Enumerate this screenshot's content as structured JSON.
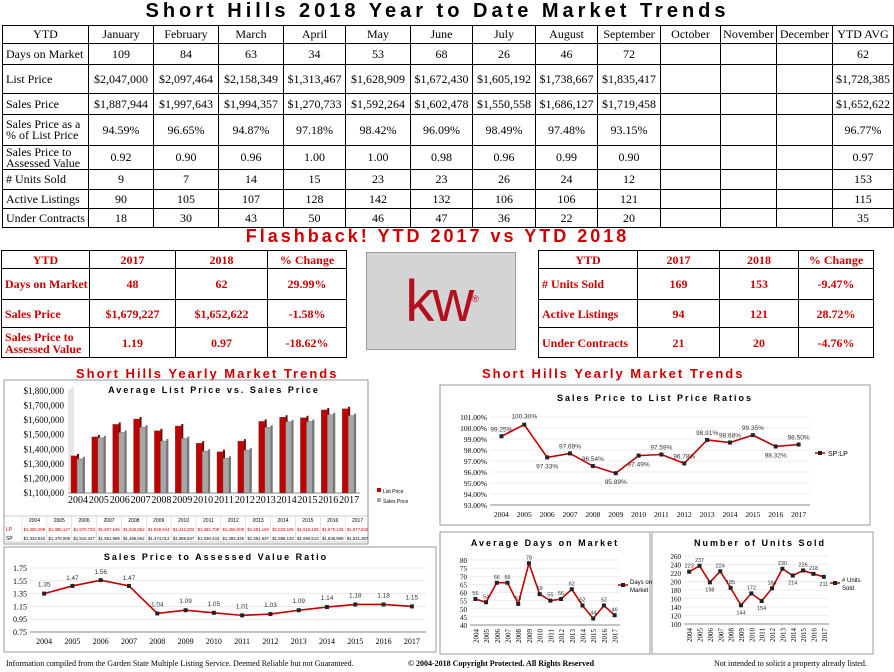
{
  "title": "Short Hills 2018 Year to Date Market Trends",
  "ytd_table": {
    "header": [
      "YTD",
      "January",
      "February",
      "March",
      "April",
      "May",
      "June",
      "July",
      "August",
      "September",
      "October",
      "November",
      "December",
      "YTD AVG"
    ],
    "rows": [
      {
        "label": "Days on Market",
        "values": [
          "109",
          "84",
          "63",
          "34",
          "53",
          "68",
          "26",
          "46",
          "72",
          "",
          "",
          "",
          "62"
        ]
      },
      {
        "label": "List Price",
        "values": [
          "$2,047,000",
          "$2,097,464",
          "$2,158,349",
          "$1,313,467",
          "$1,628,909",
          "$1,672,430",
          "$1,605,192",
          "$1,738,667",
          "$1,835,417",
          "",
          "",
          "",
          "$1,728,385"
        ]
      },
      {
        "label": "Sales Price",
        "values": [
          "$1,887,944",
          "$1,997,643",
          "$1,994,357",
          "$1,270,733",
          "$1,592,264",
          "$1,602,478",
          "$1,550,558",
          "$1,686,127",
          "$1,719,458",
          "",
          "",
          "",
          "$1,652,622"
        ]
      },
      {
        "label": "Sales Price as a % of List Price",
        "values": [
          "94.59%",
          "96.65%",
          "94.87%",
          "97.18%",
          "98.42%",
          "96.09%",
          "98.49%",
          "97.48%",
          "93.15%",
          "",
          "",
          "",
          "96.77%"
        ]
      },
      {
        "label": "Sales Price to Assessed Value",
        "values": [
          "0.92",
          "0.90",
          "0.96",
          "1.00",
          "1.00",
          "0.98",
          "0.96",
          "0.99",
          "0.90",
          "",
          "",
          "",
          "0.97"
        ]
      },
      {
        "label": "# Units Sold",
        "values": [
          "9",
          "7",
          "14",
          "15",
          "23",
          "23",
          "26",
          "24",
          "12",
          "",
          "",
          "",
          "153"
        ]
      },
      {
        "label": "Active Listings",
        "values": [
          "90",
          "105",
          "107",
          "128",
          "142",
          "132",
          "106",
          "106",
          "121",
          "",
          "",
          "",
          "115"
        ]
      },
      {
        "label": "Under Contracts",
        "values": [
          "18",
          "30",
          "43",
          "50",
          "46",
          "47",
          "36",
          "22",
          "20",
          "",
          "",
          "",
          "35"
        ]
      }
    ]
  },
  "flashback_title": "Flashback!  YTD 2017 vs YTD 2018",
  "compare_left": {
    "header": [
      "YTD",
      "2017",
      "2018",
      "% Change"
    ],
    "rows": [
      {
        "label": "Days on Market",
        "values": [
          "48",
          "62",
          "29.99%"
        ]
      },
      {
        "label": "Sales Price",
        "values": [
          "$1,679,227",
          "$1,652,622",
          "-1.58%"
        ]
      },
      {
        "label": "Sales Price to Assessed Value",
        "values": [
          "1.19",
          "0.97",
          "-18.62%"
        ]
      }
    ]
  },
  "compare_right": {
    "header": [
      "YTD",
      "2017",
      "2018",
      "% Change"
    ],
    "rows": [
      {
        "label": "# Units Sold",
        "values": [
          "169",
          "153",
          "-9.47%"
        ]
      },
      {
        "label": "Active Listings",
        "values": [
          "94",
          "121",
          "28.72%"
        ]
      },
      {
        "label": "Under Contracts",
        "values": [
          "21",
          "20",
          "-4.76%"
        ]
      }
    ]
  },
  "logo_text": "kw",
  "logo_mark": "®",
  "section_left": "Short Hills Yearly Market Trends",
  "section_right": "Short Hills Yearly Market Trends",
  "footer": {
    "left": "Information compiled from the Garden State Multiple Listing Service.  Deemed Reliable but not Guaranteed.",
    "center": "© 2004-2018 Copyright Protected.  All Rights Reserved",
    "right": "Not intended to solicit a property already listed."
  },
  "colors": {
    "red": "#cc0000",
    "bar_list": "#c00000",
    "bar_sales": "#a6a6a6",
    "line": "#c00000"
  },
  "chart_data": [
    {
      "type": "bar",
      "title": "Average List Price vs. Sales Price",
      "categories": [
        "2004",
        "2005",
        "2006",
        "2007",
        "2008",
        "2009",
        "2010",
        "2011",
        "2012",
        "2013",
        "2014",
        "2015",
        "2016",
        "2017"
      ],
      "ylim": [
        1100000,
        1800000
      ],
      "yticks": [
        "$1,100,000",
        "$1,200,000",
        "$1,300,000",
        "$1,400,000",
        "$1,500,000",
        "$1,600,000",
        "$1,700,000",
        "$1,800,000"
      ],
      "series": [
        {
          "name": "List Price",
          "short": "LP",
          "values": [
            1355009,
            1485127,
            1570733,
            1607645,
            1526852,
            1559944,
            1442002,
            1382708,
            1456009,
            1591160,
            1620105,
            1616165,
            1670136,
            1677832
          ],
          "labels": [
            "$1,355,009",
            "$1,485,127",
            "$1,570,733",
            "$1,607,645",
            "$1,526,852",
            "$1,559,944",
            "$1,442,002",
            "$1,382,708",
            "$1,456,009",
            "$1,591,160",
            "$1,620,105",
            "$1,616,165",
            "$1,670,136",
            "$1,677,832"
          ]
        },
        {
          "name": "Sales Price",
          "short": "SP",
          "values": [
            1333842,
            1478008,
            1515347,
            1551989,
            1456662,
            1474012,
            1386937,
            1338433,
            1394326,
            1551637,
            1588133,
            1590513,
            1636958,
            1631357
          ],
          "labels": [
            "$1,333,842",
            "$1,478,008",
            "$1,515,347",
            "$1,551,989",
            "$1,456,662",
            "$1,474,012",
            "$1,386,937",
            "$1,338,433",
            "$1,394,326",
            "$1,551,637",
            "$1,588,133",
            "$1,590,513",
            "$1,636,958",
            "$1,631,357"
          ]
        }
      ]
    },
    {
      "type": "line",
      "title": "Sales Price to List Price Ratios",
      "x": [
        "2004",
        "2005",
        "2006",
        "2007",
        "2008",
        "2009",
        "2010",
        "2011",
        "2012",
        "2013",
        "2014",
        "2015",
        "2016",
        "2017"
      ],
      "ylim": [
        93,
        101
      ],
      "yticks": [
        "93.00%",
        "94.00%",
        "95.00%",
        "96.00%",
        "97.00%",
        "98.00%",
        "99.00%",
        "100.00%",
        "101.00%"
      ],
      "series": [
        {
          "name": "SP:LP",
          "values": [
            99.25,
            100.3,
            97.33,
            97.69,
            96.54,
            95.89,
            97.49,
            97.59,
            96.78,
            98.91,
            98.68,
            99.35,
            98.32,
            98.5
          ],
          "labels": [
            "99.25%",
            "100.30%",
            "97.33%",
            "97.69%",
            "96.54%",
            "95.89%",
            "97.49%",
            "97.59%",
            "96.78%",
            "98.91%",
            "98.68%",
            "99.35%",
            "98.32%",
            "98.50%"
          ]
        }
      ]
    },
    {
      "type": "line",
      "title": "Sales Price to Assessed Value Ratio",
      "x": [
        "2004",
        "2005",
        "2006",
        "2007",
        "2008",
        "2009",
        "2010",
        "2011",
        "2012",
        "2013",
        "2014",
        "2015",
        "2016",
        "2017"
      ],
      "ylim": [
        0.75,
        1.75
      ],
      "yticks": [
        "0.75",
        "0.95",
        "1.15",
        "1.35",
        "1.55",
        "1.75"
      ],
      "series": [
        {
          "values": [
            1.35,
            1.47,
            1.56,
            1.47,
            1.04,
            1.09,
            1.05,
            1.01,
            1.03,
            1.09,
            1.14,
            1.18,
            1.18,
            1.15
          ],
          "labels": [
            "1.35",
            "1.47",
            "1.56",
            "1.47",
            "1.04",
            "1.09",
            "1.05",
            "1.01",
            "1.03",
            "1.09",
            "1.14",
            "1.18",
            "1.18",
            "1.15"
          ]
        }
      ]
    },
    {
      "type": "line",
      "title": "Average Days on Market",
      "x": [
        "2004",
        "2005",
        "2006",
        "2007",
        "2008",
        "2009",
        "2010",
        "2011",
        "2012",
        "2013",
        "2014",
        "2015",
        "2016",
        "2017"
      ],
      "ylim": [
        40,
        80
      ],
      "yticks": [
        "40",
        "45",
        "50",
        "55",
        "60",
        "65",
        "70",
        "75",
        "80"
      ],
      "series": [
        {
          "name": "Days on Market",
          "values": [
            56,
            54,
            66,
            66,
            53,
            78,
            59,
            55,
            56,
            62,
            52,
            44,
            52,
            46
          ],
          "labels": [
            "56",
            "54",
            "66",
            "66",
            "53",
            "78",
            "59",
            "55",
            "56",
            "62",
            "52",
            "44",
            "52",
            "46"
          ]
        }
      ]
    },
    {
      "type": "line",
      "title": "Number of Units Sold",
      "x": [
        "2004",
        "2005",
        "2006",
        "2007",
        "2008",
        "2009",
        "2010",
        "2011",
        "2012",
        "2013",
        "2014",
        "2015",
        "2016",
        "2017"
      ],
      "ylim": [
        100,
        260
      ],
      "yticks": [
        "100",
        "120",
        "140",
        "160",
        "180",
        "200",
        "220",
        "240",
        "260"
      ],
      "series": [
        {
          "name": "# Units Sold",
          "values": [
            223,
            237,
            198,
            224,
            185,
            144,
            172,
            154,
            184,
            230,
            214,
            226,
            218,
            211
          ],
          "labels": [
            "223",
            "237",
            "198",
            "224",
            "185",
            "144",
            "172",
            "154",
            "184",
            "230",
            "214",
            "226",
            "218",
            "211"
          ]
        }
      ]
    }
  ]
}
